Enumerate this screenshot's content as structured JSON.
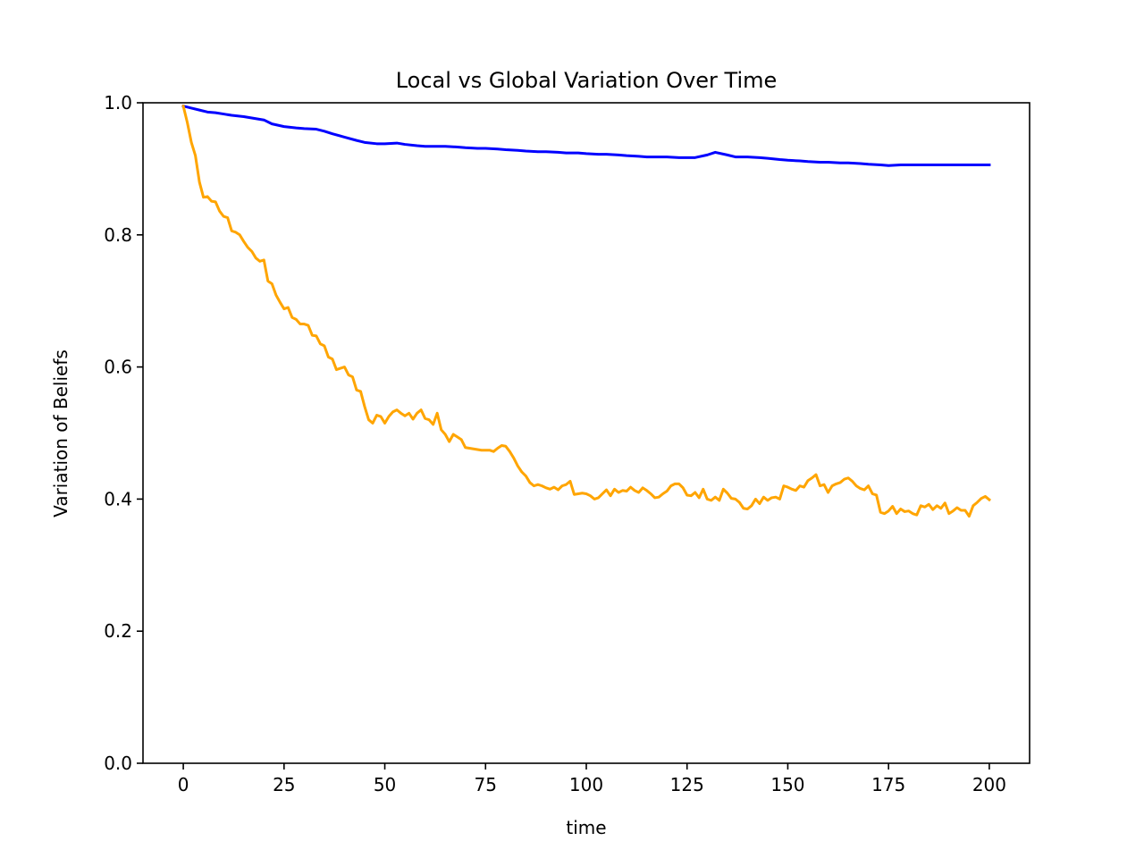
{
  "chart_data": {
    "type": "line",
    "title": "Local vs Global Variation Over Time",
    "xlabel": "time",
    "ylabel": "Variation of Beliefs",
    "xlim": [
      -10,
      210
    ],
    "ylim": [
      0.0,
      1.0
    ],
    "x_ticks": [
      0,
      25,
      50,
      75,
      100,
      125,
      150,
      175,
      200
    ],
    "y_ticks": [
      0.0,
      0.2,
      0.4,
      0.6,
      0.8,
      1.0
    ],
    "x_tick_labels": [
      "0",
      "25",
      "50",
      "75",
      "100",
      "125",
      "150",
      "175",
      "200"
    ],
    "y_tick_labels": [
      "0.0",
      "0.2",
      "0.4",
      "0.6",
      "0.8",
      "1.0"
    ],
    "grid": false,
    "legend": "none",
    "series": [
      {
        "color": "#0000ff",
        "points": [
          [
            0,
            0.995
          ],
          [
            2,
            0.992
          ],
          [
            4,
            0.989
          ],
          [
            6,
            0.986
          ],
          [
            8,
            0.985
          ],
          [
            10,
            0.983
          ],
          [
            12,
            0.981
          ],
          [
            15,
            0.979
          ],
          [
            18,
            0.976
          ],
          [
            20,
            0.974
          ],
          [
            22,
            0.968
          ],
          [
            25,
            0.964
          ],
          [
            28,
            0.962
          ],
          [
            30,
            0.961
          ],
          [
            33,
            0.96
          ],
          [
            35,
            0.957
          ],
          [
            37,
            0.953
          ],
          [
            40,
            0.948
          ],
          [
            43,
            0.943
          ],
          [
            45,
            0.94
          ],
          [
            48,
            0.938
          ],
          [
            50,
            0.938
          ],
          [
            53,
            0.939
          ],
          [
            55,
            0.937
          ],
          [
            58,
            0.935
          ],
          [
            60,
            0.934
          ],
          [
            63,
            0.934
          ],
          [
            65,
            0.934
          ],
          [
            68,
            0.933
          ],
          [
            70,
            0.932
          ],
          [
            73,
            0.931
          ],
          [
            75,
            0.931
          ],
          [
            78,
            0.93
          ],
          [
            80,
            0.929
          ],
          [
            83,
            0.928
          ],
          [
            85,
            0.927
          ],
          [
            88,
            0.926
          ],
          [
            90,
            0.926
          ],
          [
            93,
            0.925
          ],
          [
            95,
            0.924
          ],
          [
            98,
            0.924
          ],
          [
            100,
            0.923
          ],
          [
            103,
            0.922
          ],
          [
            105,
            0.922
          ],
          [
            108,
            0.921
          ],
          [
            110,
            0.92
          ],
          [
            113,
            0.919
          ],
          [
            115,
            0.918
          ],
          [
            118,
            0.918
          ],
          [
            120,
            0.918
          ],
          [
            123,
            0.917
          ],
          [
            125,
            0.917
          ],
          [
            127,
            0.917
          ],
          [
            130,
            0.921
          ],
          [
            132,
            0.925
          ],
          [
            135,
            0.921
          ],
          [
            137,
            0.918
          ],
          [
            140,
            0.918
          ],
          [
            143,
            0.917
          ],
          [
            145,
            0.916
          ],
          [
            148,
            0.914
          ],
          [
            150,
            0.913
          ],
          [
            153,
            0.912
          ],
          [
            155,
            0.911
          ],
          [
            158,
            0.91
          ],
          [
            160,
            0.91
          ],
          [
            163,
            0.909
          ],
          [
            165,
            0.909
          ],
          [
            168,
            0.908
          ],
          [
            170,
            0.907
          ],
          [
            173,
            0.906
          ],
          [
            175,
            0.905
          ],
          [
            178,
            0.906
          ],
          [
            180,
            0.906
          ],
          [
            183,
            0.906
          ],
          [
            185,
            0.906
          ],
          [
            188,
            0.906
          ],
          [
            190,
            0.906
          ],
          [
            193,
            0.906
          ],
          [
            195,
            0.906
          ],
          [
            198,
            0.906
          ],
          [
            200,
            0.906
          ]
        ]
      },
      {
        "color": "#ffa500",
        "points": [
          [
            0,
            0.995
          ],
          [
            1,
            0.97
          ],
          [
            2,
            0.94
          ],
          [
            3,
            0.92
          ],
          [
            4,
            0.88
          ],
          [
            5,
            0.857
          ],
          [
            6,
            0.858
          ],
          [
            7,
            0.851
          ],
          [
            8,
            0.85
          ],
          [
            9,
            0.836
          ],
          [
            10,
            0.828
          ],
          [
            11,
            0.826
          ],
          [
            12,
            0.806
          ],
          [
            13,
            0.804
          ],
          [
            14,
            0.8
          ],
          [
            15,
            0.79
          ],
          [
            16,
            0.781
          ],
          [
            17,
            0.775
          ],
          [
            18,
            0.765
          ],
          [
            19,
            0.76
          ],
          [
            20,
            0.762
          ],
          [
            21,
            0.73
          ],
          [
            22,
            0.726
          ],
          [
            23,
            0.709
          ],
          [
            24,
            0.698
          ],
          [
            25,
            0.688
          ],
          [
            26,
            0.69
          ],
          [
            27,
            0.675
          ],
          [
            28,
            0.672
          ],
          [
            29,
            0.665
          ],
          [
            30,
            0.665
          ],
          [
            31,
            0.663
          ],
          [
            32,
            0.648
          ],
          [
            33,
            0.647
          ],
          [
            34,
            0.635
          ],
          [
            35,
            0.632
          ],
          [
            36,
            0.615
          ],
          [
            37,
            0.612
          ],
          [
            38,
            0.596
          ],
          [
            39,
            0.598
          ],
          [
            40,
            0.6
          ],
          [
            41,
            0.588
          ],
          [
            42,
            0.585
          ],
          [
            43,
            0.565
          ],
          [
            44,
            0.563
          ],
          [
            45,
            0.54
          ],
          [
            46,
            0.52
          ],
          [
            47,
            0.515
          ],
          [
            48,
            0.527
          ],
          [
            49,
            0.525
          ],
          [
            50,
            0.515
          ],
          [
            51,
            0.525
          ],
          [
            52,
            0.532
          ],
          [
            53,
            0.535
          ],
          [
            54,
            0.53
          ],
          [
            55,
            0.526
          ],
          [
            56,
            0.53
          ],
          [
            57,
            0.521
          ],
          [
            58,
            0.53
          ],
          [
            59,
            0.535
          ],
          [
            60,
            0.522
          ],
          [
            61,
            0.52
          ],
          [
            62,
            0.513
          ],
          [
            63,
            0.53
          ],
          [
            64,
            0.505
          ],
          [
            65,
            0.498
          ],
          [
            66,
            0.487
          ],
          [
            67,
            0.498
          ],
          [
            68,
            0.494
          ],
          [
            69,
            0.49
          ],
          [
            70,
            0.478
          ],
          [
            72,
            0.476
          ],
          [
            74,
            0.474
          ],
          [
            76,
            0.474
          ],
          [
            77,
            0.472
          ],
          [
            78,
            0.477
          ],
          [
            79,
            0.481
          ],
          [
            80,
            0.48
          ],
          [
            81,
            0.472
          ],
          [
            82,
            0.462
          ],
          [
            83,
            0.45
          ],
          [
            84,
            0.441
          ],
          [
            85,
            0.435
          ],
          [
            86,
            0.425
          ],
          [
            87,
            0.42
          ],
          [
            88,
            0.422
          ],
          [
            89,
            0.42
          ],
          [
            90,
            0.417
          ],
          [
            91,
            0.415
          ],
          [
            92,
            0.418
          ],
          [
            93,
            0.414
          ],
          [
            94,
            0.42
          ],
          [
            95,
            0.422
          ],
          [
            96,
            0.427
          ],
          [
            97,
            0.407
          ],
          [
            98,
            0.408
          ],
          [
            99,
            0.409
          ],
          [
            100,
            0.408
          ],
          [
            101,
            0.405
          ],
          [
            102,
            0.4
          ],
          [
            103,
            0.402
          ],
          [
            104,
            0.408
          ],
          [
            105,
            0.414
          ],
          [
            106,
            0.405
          ],
          [
            107,
            0.415
          ],
          [
            108,
            0.41
          ],
          [
            109,
            0.413
          ],
          [
            110,
            0.412
          ],
          [
            111,
            0.418
          ],
          [
            112,
            0.413
          ],
          [
            113,
            0.41
          ],
          [
            114,
            0.417
          ],
          [
            115,
            0.413
          ],
          [
            116,
            0.408
          ],
          [
            117,
            0.402
          ],
          [
            118,
            0.403
          ],
          [
            119,
            0.408
          ],
          [
            120,
            0.412
          ],
          [
            121,
            0.42
          ],
          [
            122,
            0.423
          ],
          [
            123,
            0.423
          ],
          [
            124,
            0.417
          ],
          [
            125,
            0.406
          ],
          [
            126,
            0.405
          ],
          [
            127,
            0.41
          ],
          [
            128,
            0.402
          ],
          [
            129,
            0.415
          ],
          [
            130,
            0.4
          ],
          [
            131,
            0.398
          ],
          [
            132,
            0.403
          ],
          [
            133,
            0.398
          ],
          [
            134,
            0.415
          ],
          [
            135,
            0.409
          ],
          [
            136,
            0.401
          ],
          [
            137,
            0.4
          ],
          [
            138,
            0.395
          ],
          [
            139,
            0.386
          ],
          [
            140,
            0.385
          ],
          [
            141,
            0.39
          ],
          [
            142,
            0.4
          ],
          [
            143,
            0.393
          ],
          [
            144,
            0.403
          ],
          [
            145,
            0.398
          ],
          [
            146,
            0.402
          ],
          [
            147,
            0.403
          ],
          [
            148,
            0.4
          ],
          [
            149,
            0.42
          ],
          [
            150,
            0.418
          ],
          [
            151,
            0.415
          ],
          [
            152,
            0.413
          ],
          [
            153,
            0.42
          ],
          [
            154,
            0.418
          ],
          [
            155,
            0.428
          ],
          [
            156,
            0.432
          ],
          [
            157,
            0.437
          ],
          [
            158,
            0.42
          ],
          [
            159,
            0.422
          ],
          [
            160,
            0.41
          ],
          [
            161,
            0.42
          ],
          [
            162,
            0.423
          ],
          [
            163,
            0.425
          ],
          [
            164,
            0.43
          ],
          [
            165,
            0.432
          ],
          [
            166,
            0.427
          ],
          [
            167,
            0.42
          ],
          [
            168,
            0.416
          ],
          [
            169,
            0.414
          ],
          [
            170,
            0.42
          ],
          [
            171,
            0.408
          ],
          [
            172,
            0.406
          ],
          [
            173,
            0.38
          ],
          [
            174,
            0.378
          ],
          [
            175,
            0.382
          ],
          [
            176,
            0.389
          ],
          [
            177,
            0.378
          ],
          [
            178,
            0.385
          ],
          [
            179,
            0.381
          ],
          [
            180,
            0.382
          ],
          [
            181,
            0.378
          ],
          [
            182,
            0.376
          ],
          [
            183,
            0.39
          ],
          [
            184,
            0.388
          ],
          [
            185,
            0.392
          ],
          [
            186,
            0.384
          ],
          [
            187,
            0.39
          ],
          [
            188,
            0.386
          ],
          [
            189,
            0.394
          ],
          [
            190,
            0.378
          ],
          [
            191,
            0.382
          ],
          [
            192,
            0.387
          ],
          [
            193,
            0.383
          ],
          [
            194,
            0.383
          ],
          [
            195,
            0.374
          ],
          [
            196,
            0.39
          ],
          [
            197,
            0.395
          ],
          [
            198,
            0.401
          ],
          [
            199,
            0.404
          ],
          [
            200,
            0.399
          ]
        ]
      }
    ]
  }
}
